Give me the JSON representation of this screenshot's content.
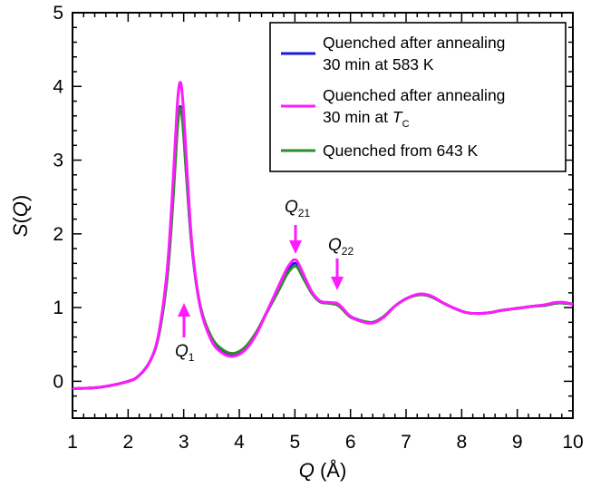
{
  "chart_data": {
    "type": "line",
    "xlabel_var": "Q",
    "xlabel_unit": " (Å)",
    "ylabel_var": "S",
    "ylabel_paren_open": "(",
    "ylabel_arg": "Q",
    "ylabel_paren_close": ")",
    "xlim": [
      1,
      10
    ],
    "ylim": [
      -0.5,
      5
    ],
    "x_ticks": [
      "1",
      "2",
      "3",
      "4",
      "5",
      "6",
      "7",
      "8",
      "9",
      "10"
    ],
    "y_ticks": [
      "0",
      "1",
      "2",
      "3",
      "4",
      "5"
    ],
    "grid": false,
    "legend_position": "top-right",
    "legend": {
      "entry1_line1": "Quenched after annealing",
      "entry1_line2": "30 min at 583 K",
      "entry2_line1": "Quenched after annealing",
      "entry2_line2": "30 min at ",
      "entry2_var": "T",
      "entry2_sub": "C",
      "entry3": "Quenched from 643 K"
    },
    "annotations": {
      "q1_var": "Q",
      "q1_sub": "1",
      "q21_var": "Q",
      "q21_sub": "21",
      "q22_var": "Q",
      "q22_sub": "22"
    },
    "colors": {
      "blue": "#1a1adc",
      "magenta": "#ff1aff",
      "green": "#2e8b2e"
    },
    "series": [
      {
        "name": "Quenched after annealing 30 min at 583 K",
        "color": "#1a1adc",
        "x": [
          1.0,
          1.5,
          2.0,
          2.2,
          2.4,
          2.55,
          2.7,
          2.8,
          2.88,
          2.93,
          2.98,
          3.05,
          3.15,
          3.3,
          3.5,
          3.7,
          3.9,
          4.1,
          4.3,
          4.5,
          4.7,
          4.85,
          4.95,
          5.0,
          5.05,
          5.15,
          5.3,
          5.45,
          5.6,
          5.75,
          5.85,
          6.0,
          6.2,
          6.4,
          6.6,
          6.8,
          7.0,
          7.2,
          7.35,
          7.5,
          7.7,
          7.9,
          8.1,
          8.3,
          8.5,
          8.7,
          8.9,
          9.1,
          9.3,
          9.5,
          9.7,
          9.85,
          10.0
        ],
        "y": [
          -0.1,
          -0.08,
          0.0,
          0.08,
          0.28,
          0.62,
          1.4,
          2.4,
          3.4,
          3.72,
          3.55,
          2.8,
          1.8,
          1.0,
          0.58,
          0.42,
          0.37,
          0.45,
          0.65,
          0.95,
          1.25,
          1.48,
          1.58,
          1.6,
          1.58,
          1.42,
          1.2,
          1.08,
          1.06,
          1.05,
          0.99,
          0.88,
          0.82,
          0.8,
          0.88,
          1.02,
          1.12,
          1.17,
          1.17,
          1.13,
          1.05,
          0.98,
          0.93,
          0.92,
          0.93,
          0.96,
          0.98,
          1.0,
          1.02,
          1.03,
          1.06,
          1.06,
          1.05
        ]
      },
      {
        "name": "Quenched after annealing 30 min at Tc",
        "color": "#ff1aff",
        "x": [
          1.0,
          1.5,
          2.0,
          2.2,
          2.4,
          2.55,
          2.7,
          2.8,
          2.88,
          2.93,
          2.98,
          3.05,
          3.15,
          3.3,
          3.5,
          3.7,
          3.9,
          4.1,
          4.3,
          4.5,
          4.7,
          4.85,
          4.95,
          5.0,
          5.05,
          5.15,
          5.3,
          5.45,
          5.6,
          5.75,
          5.85,
          6.0,
          6.2,
          6.4,
          6.6,
          6.8,
          7.0,
          7.2,
          7.35,
          7.5,
          7.7,
          7.9,
          8.1,
          8.3,
          8.5,
          8.7,
          8.9,
          9.1,
          9.3,
          9.5,
          9.7,
          9.85,
          10.0
        ],
        "y": [
          -0.1,
          -0.08,
          0.0,
          0.08,
          0.28,
          0.65,
          1.5,
          2.6,
          3.7,
          4.05,
          3.85,
          3.0,
          1.85,
          1.0,
          0.55,
          0.38,
          0.34,
          0.42,
          0.63,
          0.95,
          1.28,
          1.52,
          1.63,
          1.65,
          1.62,
          1.46,
          1.22,
          1.09,
          1.07,
          1.06,
          1.0,
          0.88,
          0.81,
          0.79,
          0.87,
          1.02,
          1.12,
          1.18,
          1.18,
          1.14,
          1.05,
          0.98,
          0.93,
          0.92,
          0.93,
          0.96,
          0.98,
          1.0,
          1.02,
          1.04,
          1.07,
          1.07,
          1.04
        ]
      },
      {
        "name": "Quenched from 643 K",
        "color": "#2e8b2e",
        "x": [
          1.0,
          1.5,
          2.0,
          2.2,
          2.4,
          2.55,
          2.7,
          2.8,
          2.88,
          2.93,
          2.98,
          3.05,
          3.15,
          3.3,
          3.5,
          3.7,
          3.9,
          4.1,
          4.3,
          4.5,
          4.7,
          4.85,
          4.95,
          5.0,
          5.05,
          5.15,
          5.3,
          5.45,
          5.6,
          5.75,
          5.85,
          6.0,
          6.2,
          6.4,
          6.6,
          6.8,
          7.0,
          7.2,
          7.35,
          7.5,
          7.7,
          7.9,
          8.1,
          8.3,
          8.5,
          8.7,
          8.9,
          9.1,
          9.3,
          9.5,
          9.7,
          9.85,
          10.0
        ],
        "y": [
          -0.1,
          -0.08,
          0.0,
          0.08,
          0.28,
          0.62,
          1.38,
          2.35,
          3.35,
          3.7,
          3.52,
          2.78,
          1.8,
          1.02,
          0.6,
          0.43,
          0.38,
          0.46,
          0.66,
          0.94,
          1.22,
          1.44,
          1.54,
          1.56,
          1.54,
          1.4,
          1.2,
          1.08,
          1.06,
          1.04,
          0.98,
          0.87,
          0.82,
          0.8,
          0.88,
          1.02,
          1.12,
          1.17,
          1.17,
          1.13,
          1.05,
          0.98,
          0.93,
          0.92,
          0.93,
          0.96,
          0.98,
          1.0,
          1.02,
          1.03,
          1.06,
          1.06,
          1.05
        ]
      }
    ]
  }
}
